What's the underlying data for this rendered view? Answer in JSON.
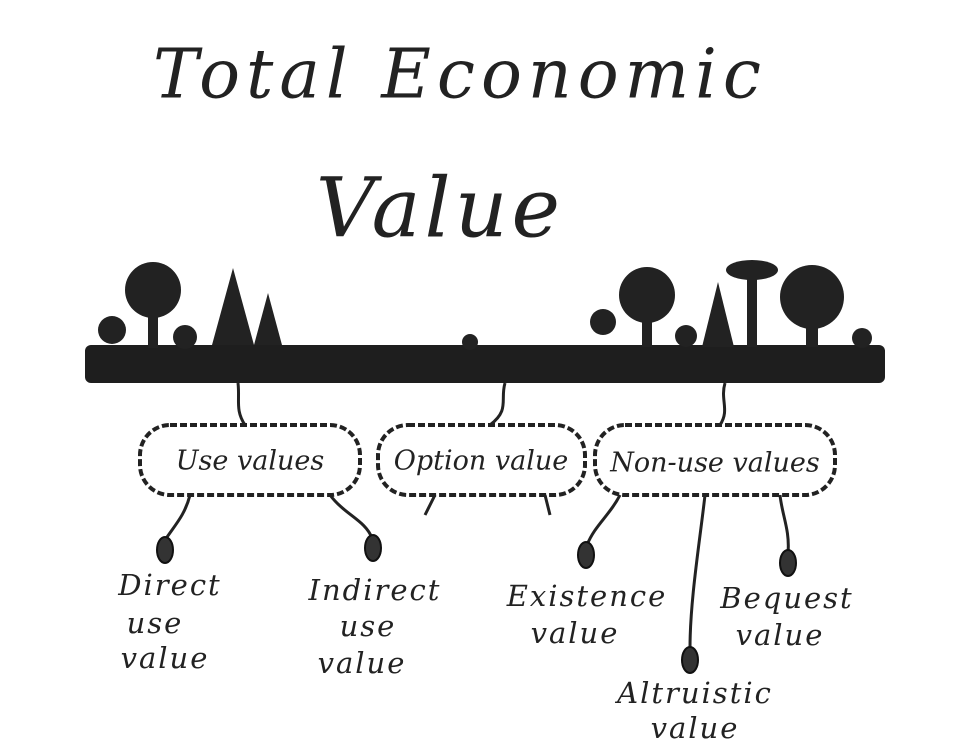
{
  "title": {
    "lines": [
      "Total Economic",
      "Value"
    ]
  },
  "groups": [
    {
      "label": "Use values",
      "children": [
        {
          "lines": [
            "Direct",
            "use",
            "value"
          ]
        },
        {
          "lines": [
            "Indirect",
            "use",
            "value"
          ]
        }
      ]
    },
    {
      "label": "Option value",
      "children": []
    },
    {
      "label": "Non-use values",
      "children": [
        {
          "lines": [
            "Existence",
            "value"
          ]
        },
        {
          "lines": [
            "Bequest",
            "value"
          ]
        },
        {
          "lines": [
            "Altruistic",
            "value"
          ]
        }
      ]
    }
  ]
}
